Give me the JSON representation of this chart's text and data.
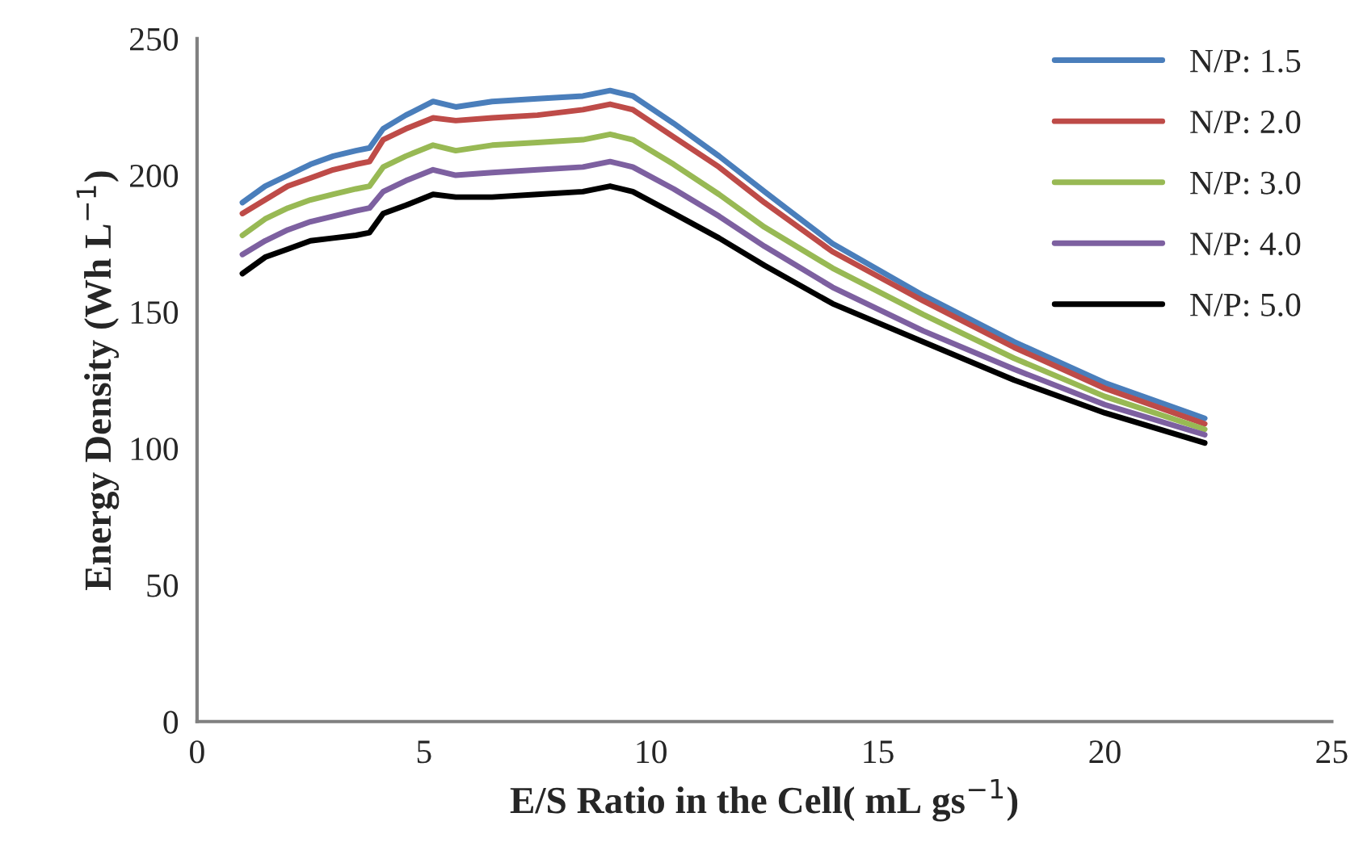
{
  "chart_data": {
    "type": "line",
    "xlabel": "E/S Ratio in the Cell( mL gs$^{−1}$)",
    "ylabel": "Energy Density (Wh L$^{−1}$)",
    "x": [
      1,
      1.5,
      2,
      2.5,
      3,
      3.5,
      3.8,
      4.1,
      4.6,
      5.2,
      5.7,
      6.5,
      7.5,
      8.5,
      9.1,
      9.6,
      10.5,
      11.5,
      12.5,
      14,
      16,
      18,
      20,
      22.2
    ],
    "series": [
      {
        "name": "N/P: 1.5",
        "color": "#4a7ebb",
        "values": [
          190,
          196,
          200,
          204,
          207,
          209,
          210,
          217,
          222,
          227,
          225,
          227,
          228,
          229,
          231,
          229,
          219,
          207,
          194,
          175,
          156,
          139,
          124,
          111
        ]
      },
      {
        "name": "N/P: 2.0",
        "color": "#be4b48",
        "values": [
          186,
          191,
          196,
          199,
          202,
          204,
          205,
          213,
          217,
          221,
          220,
          221,
          222,
          224,
          226,
          224,
          214,
          203,
          190,
          172,
          154,
          137,
          122,
          109
        ]
      },
      {
        "name": "N/P: 3.0",
        "color": "#98b954",
        "values": [
          178,
          184,
          188,
          191,
          193,
          195,
          196,
          203,
          207,
          211,
          209,
          211,
          212,
          213,
          215,
          213,
          204,
          193,
          181,
          166,
          149,
          133,
          119,
          107
        ]
      },
      {
        "name": "N/P: 4.0",
        "color": "#7d60a0",
        "values": [
          171,
          176,
          180,
          183,
          185,
          187,
          188,
          194,
          198,
          202,
          200,
          201,
          202,
          203,
          205,
          203,
          195,
          185,
          174,
          159,
          143,
          129,
          116,
          105
        ]
      },
      {
        "name": "N/P: 5.0",
        "color": "#000000",
        "values": [
          164,
          170,
          173,
          176,
          177,
          178,
          179,
          186,
          189,
          193,
          192,
          192,
          193,
          194,
          196,
          194,
          186,
          177,
          167,
          153,
          139,
          125,
          113,
          102
        ]
      }
    ],
    "xlim": [
      0,
      25
    ],
    "xticks": [
      0,
      5,
      10,
      15,
      20,
      25
    ],
    "ylim": [
      0,
      250
    ],
    "yticks": [
      0,
      50,
      100,
      150,
      200,
      250
    ],
    "grid": false,
    "legend": "top right",
    "marker": "none",
    "line_style": "solid"
  }
}
